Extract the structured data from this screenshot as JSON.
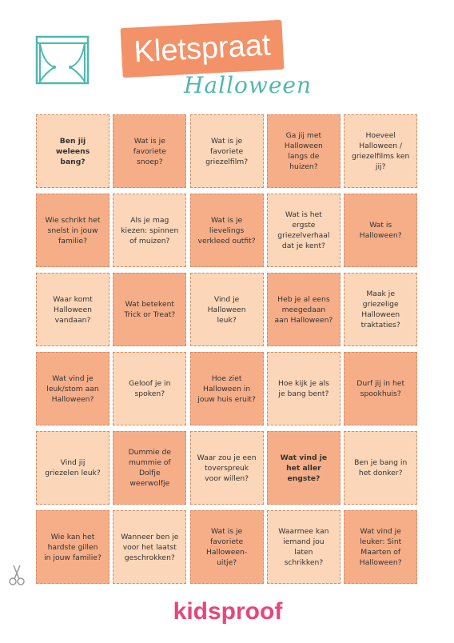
{
  "header": {
    "title": "Kletspraat",
    "subtitle": "Halloween"
  },
  "cards": {
    "rows": [
      [
        "Ben jij weleens bang?",
        "Wat is je favoriete snoep?",
        "Wat is je favoriete griezelfilm?",
        "Ga jij met Halloween langs de huizen?",
        "Hoeveel Halloween / griezelfilms ken jij?"
      ],
      [
        "Wie schrikt het snelst in jouw familie?",
        "Als je mag kiezen: spinnen of muizen?",
        "Wat is je lievelings verkleed outfit?",
        "Wat is het ergste griezelverhaal dat je kent?",
        "Wat is Halloween?"
      ],
      [
        "Waar komt Halloween vandaan?",
        "Wat betekent Trick or Treat?",
        "Vind je Halloween leuk?",
        "Heb je al eens meegedaan aan Halloween?",
        "Maak je griezelige Halloween traktaties?"
      ],
      [
        "Wat vind je leuk/stom aan Halloween?",
        "Geloof je in spoken?",
        "Hoe ziet Halloween in jouw huis eruit?",
        "Hoe kijk je als je bang bent?",
        "Durf jij in het spookhuis?"
      ],
      [
        "Vind jij griezelen leuk?",
        "Dummie de mummie of Dolfje weerwolfje",
        "Waar zou je een toverspreuk voor willen?",
        "Wat vind je het aller engste?",
        "Ben je bang in het donker?"
      ],
      [
        "Wie kan het hardste gillen in jouw familie?",
        "Wanneer ben je voor het laatst geschrokken?",
        "Wat is je favoriete Halloween-uitje?",
        "Waarmee kan iemand jou laten schrikken?",
        "Wat vind je leuker: Sint Maarten of Halloween?"
      ]
    ]
  },
  "footer": {
    "logo": "kidsproof"
  }
}
